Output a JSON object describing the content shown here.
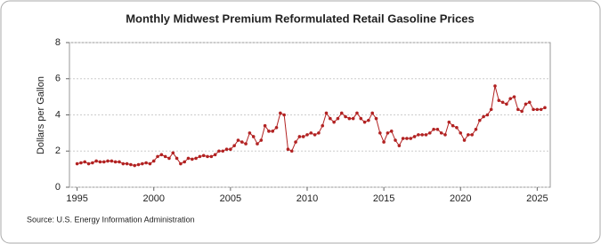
{
  "chart_data": {
    "type": "line",
    "title": "Monthly Midwest Premium Reformulated Retail Gasoline Prices",
    "y_label": "Dollars per Gallon",
    "source": "Source: U.S. Energy Information Administration",
    "color": "#b22222",
    "xlim": [
      1994.5,
      2025.85
    ],
    "xticks": [
      1995,
      2000,
      2005,
      2010,
      2015,
      2020,
      2025
    ],
    "ylim": [
      0,
      8
    ],
    "yticks": [
      0,
      2,
      4,
      6,
      8
    ],
    "grid": true,
    "x": [
      1995,
      1995.25,
      1995.5,
      1995.75,
      1996,
      1996.25,
      1996.5,
      1996.75,
      1997,
      1997.25,
      1997.5,
      1997.75,
      1998,
      1998.25,
      1998.5,
      1998.75,
      1999,
      1999.25,
      1999.5,
      1999.75,
      2000,
      2000.25,
      2000.5,
      2000.75,
      2001,
      2001.25,
      2001.5,
      2001.75,
      2002,
      2002.25,
      2002.5,
      2002.75,
      2003,
      2003.25,
      2003.5,
      2003.75,
      2004,
      2004.25,
      2004.5,
      2004.75,
      2005,
      2005.25,
      2005.5,
      2005.75,
      2006,
      2006.25,
      2006.5,
      2006.75,
      2007,
      2007.25,
      2007.5,
      2007.75,
      2008,
      2008.25,
      2008.5,
      2008.75,
      2009,
      2009.25,
      2009.5,
      2009.75,
      2010,
      2010.25,
      2010.5,
      2010.75,
      2011,
      2011.25,
      2011.5,
      2011.75,
      2012,
      2012.25,
      2012.5,
      2012.75,
      2013,
      2013.25,
      2013.5,
      2013.75,
      2014,
      2014.25,
      2014.5,
      2014.75,
      2015,
      2015.25,
      2015.5,
      2015.75,
      2016,
      2016.25,
      2016.5,
      2016.75,
      2017,
      2017.25,
      2017.5,
      2017.75,
      2018,
      2018.25,
      2018.5,
      2018.75,
      2019,
      2019.25,
      2019.5,
      2019.75,
      2020,
      2020.25,
      2020.5,
      2020.75,
      2021,
      2021.25,
      2021.5,
      2021.75,
      2022,
      2022.25,
      2022.5,
      2022.75,
      2023,
      2023.25,
      2023.5,
      2023.75,
      2024,
      2024.25,
      2024.5,
      2024.75,
      2025,
      2025.25,
      2025.5
    ],
    "values": [
      1.3,
      1.35,
      1.4,
      1.3,
      1.35,
      1.45,
      1.4,
      1.4,
      1.45,
      1.45,
      1.4,
      1.4,
      1.3,
      1.3,
      1.25,
      1.2,
      1.25,
      1.3,
      1.35,
      1.3,
      1.45,
      1.7,
      1.8,
      1.7,
      1.6,
      1.9,
      1.6,
      1.3,
      1.4,
      1.6,
      1.55,
      1.6,
      1.7,
      1.75,
      1.7,
      1.7,
      1.8,
      2.0,
      2.0,
      2.1,
      2.1,
      2.3,
      2.6,
      2.5,
      2.4,
      3.0,
      2.8,
      2.4,
      2.6,
      3.4,
      3.1,
      3.1,
      3.3,
      4.1,
      4.0,
      2.1,
      2.0,
      2.5,
      2.8,
      2.8,
      2.9,
      3.0,
      2.9,
      3.0,
      3.4,
      4.1,
      3.8,
      3.6,
      3.8,
      4.1,
      3.9,
      3.8,
      3.8,
      4.1,
      3.8,
      3.6,
      3.7,
      4.1,
      3.8,
      3.0,
      2.5,
      3.0,
      3.1,
      2.6,
      2.3,
      2.7,
      2.7,
      2.7,
      2.8,
      2.9,
      2.9,
      2.9,
      3.0,
      3.2,
      3.2,
      3.0,
      2.9,
      3.6,
      3.4,
      3.3,
      3.0,
      2.6,
      2.9,
      2.9,
      3.2,
      3.7,
      3.9,
      4.0,
      4.3,
      5.6,
      4.8,
      4.7,
      4.6,
      4.9,
      5.0,
      4.3,
      4.2,
      4.6,
      4.7,
      4.3,
      4.3,
      4.3,
      4.4
    ]
  }
}
